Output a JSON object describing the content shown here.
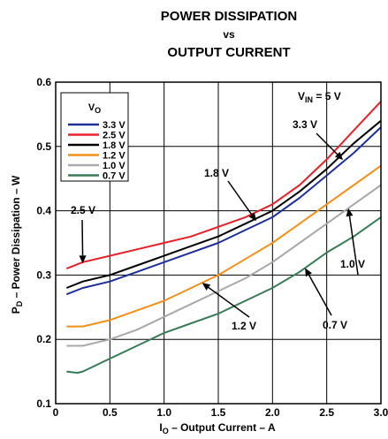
{
  "chart_data": {
    "type": "line",
    "title_lines": [
      "POWER DISSIPATION",
      "vs",
      "OUTPUT CURRENT"
    ],
    "xlabel": {
      "main": "I",
      "sub": "O",
      "rest": " – Output Current – A"
    },
    "ylabel": {
      "main": "P",
      "sub": "D",
      "rest": " – Power Dissipation – W"
    },
    "xlim": [
      0,
      3.0
    ],
    "ylim": [
      0.1,
      0.6
    ],
    "x_ticks": [
      {
        "value": 0,
        "label": "0"
      },
      {
        "value": 0.5,
        "label": "0.5"
      },
      {
        "value": 1.0,
        "label": "1.0"
      },
      {
        "value": 1.5,
        "label": "1.5"
      },
      {
        "value": 2.0,
        "label": "2.0"
      },
      {
        "value": 2.5,
        "label": "2.5"
      },
      {
        "value": 3.0,
        "label": "3.0"
      }
    ],
    "y_ticks": [
      {
        "value": 0.1,
        "label": "0.1"
      },
      {
        "value": 0.2,
        "label": "0.2"
      },
      {
        "value": 0.3,
        "label": "0.3"
      },
      {
        "value": 0.4,
        "label": "0.4"
      },
      {
        "value": 0.5,
        "label": "0.5"
      },
      {
        "value": 0.6,
        "label": "0.6"
      }
    ],
    "grid": true,
    "legend": {
      "title": {
        "main": "V",
        "sub": "O"
      },
      "placement": "top-left"
    },
    "condition": {
      "main": "V",
      "sub": "IN",
      "rest": " = 5 V"
    },
    "series": [
      {
        "name": "3.3 V",
        "color": "#1f2f9a",
        "x": [
          0.1,
          0.25,
          0.5,
          0.75,
          1.0,
          1.25,
          1.5,
          1.75,
          2.0,
          2.25,
          2.5,
          2.75,
          3.0
        ],
        "y": [
          0.27,
          0.28,
          0.29,
          0.305,
          0.32,
          0.335,
          0.35,
          0.37,
          0.39,
          0.42,
          0.455,
          0.49,
          0.53
        ]
      },
      {
        "name": "2.5 V",
        "color": "#e8202a",
        "x": [
          0.1,
          0.25,
          0.5,
          0.75,
          1.0,
          1.25,
          1.5,
          1.75,
          2.0,
          2.25,
          2.5,
          2.75,
          3.0
        ],
        "y": [
          0.31,
          0.32,
          0.33,
          0.34,
          0.35,
          0.36,
          0.375,
          0.39,
          0.41,
          0.44,
          0.48,
          0.525,
          0.57
        ]
      },
      {
        "name": "1.8 V",
        "color": "#000000",
        "x": [
          0.1,
          0.25,
          0.5,
          0.75,
          1.0,
          1.25,
          1.5,
          1.75,
          2.0,
          2.25,
          2.5,
          2.75,
          3.0
        ],
        "y": [
          0.28,
          0.29,
          0.3,
          0.315,
          0.33,
          0.345,
          0.36,
          0.38,
          0.4,
          0.43,
          0.465,
          0.505,
          0.54
        ]
      },
      {
        "name": "1.2 V",
        "color": "#f39019",
        "x": [
          0.1,
          0.25,
          0.5,
          0.75,
          1.0,
          1.25,
          1.5,
          1.75,
          2.0,
          2.25,
          2.5,
          2.75,
          3.0
        ],
        "y": [
          0.22,
          0.22,
          0.23,
          0.245,
          0.26,
          0.28,
          0.3,
          0.325,
          0.35,
          0.38,
          0.41,
          0.44,
          0.47
        ]
      },
      {
        "name": "1.0 V",
        "color": "#a9a9a9",
        "x": [
          0.1,
          0.25,
          0.5,
          0.75,
          1.0,
          1.25,
          1.5,
          1.75,
          2.0,
          2.25,
          2.5,
          2.75,
          3.0
        ],
        "y": [
          0.19,
          0.19,
          0.2,
          0.215,
          0.235,
          0.255,
          0.275,
          0.295,
          0.32,
          0.35,
          0.38,
          0.41,
          0.44
        ]
      },
      {
        "name": "0.7 V",
        "color": "#3a7a5a",
        "x": [
          0.1,
          0.2,
          0.25,
          0.5,
          0.75,
          1.0,
          1.25,
          1.5,
          1.75,
          2.0,
          2.25,
          2.5,
          2.75,
          3.0
        ],
        "y": [
          0.15,
          0.148,
          0.15,
          0.17,
          0.19,
          0.21,
          0.225,
          0.24,
          0.26,
          0.28,
          0.305,
          0.335,
          0.36,
          0.39
        ]
      }
    ],
    "annotations": [
      {
        "text": "2.5 V",
        "arrow_to": [
          0.25,
          0.318
        ]
      },
      {
        "text": "1.8 V",
        "arrow_to": [
          1.85,
          0.384
        ]
      },
      {
        "text": "3.3 V",
        "arrow_to": [
          2.65,
          0.479
        ]
      },
      {
        "text": "1.0 V",
        "arrow_to": [
          2.7,
          0.404
        ]
      },
      {
        "text": "1.2 V",
        "arrow_to": [
          1.35,
          0.288
        ]
      },
      {
        "text": "0.7 V",
        "arrow_to": [
          2.3,
          0.311
        ]
      }
    ]
  }
}
